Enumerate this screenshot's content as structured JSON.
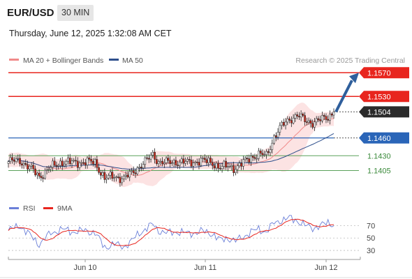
{
  "header": {
    "symbol": "EUR/USD",
    "timeframe": "30 MIN",
    "datetime": "Thursday, June 12, 2025 1:32:08 AM CET"
  },
  "legend": {
    "items": [
      {
        "label": "MA 20 + Bollinger Bands",
        "color": "#f08a8a"
      },
      {
        "label": "MA 50",
        "color": "#2e4f8c"
      }
    ],
    "copyright": "Research © 2025 Trading Central"
  },
  "colors": {
    "resistance": "#e8251e",
    "support_blue": "#2a65b8",
    "support_green": "#5aa15a",
    "price_tag": "#2b2b2b",
    "arrow": "#2f5f9c",
    "bollinger_fill": "#fbd9d9",
    "ma20": "#f08a8a",
    "ma50": "#2e4f8c",
    "rsi": "#6a7fd8",
    "rsi_ma": "#e8251e",
    "candle": "#cc2a1c"
  },
  "chart_data": [
    {
      "type": "candlestick",
      "title": "EUR/USD",
      "timeframe": "30 MIN",
      "x_ticks": [
        "Jun 10",
        "Jun 11",
        "Jun 12"
      ],
      "ylim": [
        1.1375,
        1.1575
      ],
      "levels": [
        {
          "value": 1.157,
          "label": "1.1570",
          "kind": "resistance"
        },
        {
          "value": 1.153,
          "label": "1.1530",
          "kind": "resistance"
        },
        {
          "value": 1.1504,
          "label": "1.1504",
          "kind": "last_price"
        },
        {
          "value": 1.146,
          "label": "1.1460",
          "kind": "support"
        },
        {
          "value": 1.143,
          "label": "1.1430",
          "kind": "support"
        },
        {
          "value": 1.1405,
          "label": "1.1405",
          "kind": "support"
        }
      ],
      "series": [
        {
          "name": "MA 20 + Bollinger Bands"
        },
        {
          "name": "MA 50"
        }
      ],
      "close_keypoints": [
        [
          0,
          1.142
        ],
        [
          6,
          1.1422
        ],
        [
          11,
          1.141
        ],
        [
          16,
          1.1395
        ],
        [
          22,
          1.141
        ],
        [
          28,
          1.142
        ],
        [
          34,
          1.1418
        ],
        [
          40,
          1.142
        ],
        [
          45,
          1.1418
        ],
        [
          50,
          1.1392
        ],
        [
          55,
          1.1395
        ],
        [
          60,
          1.1392
        ],
        [
          64,
          1.14
        ],
        [
          68,
          1.1412
        ],
        [
          72,
          1.1422
        ],
        [
          75,
          1.1432
        ],
        [
          78,
          1.142
        ],
        [
          82,
          1.1418
        ],
        [
          88,
          1.142
        ],
        [
          94,
          1.1418
        ],
        [
          100,
          1.1422
        ],
        [
          106,
          1.1418
        ],
        [
          110,
          1.141
        ],
        [
          114,
          1.1412
        ],
        [
          118,
          1.141
        ],
        [
          122,
          1.1418
        ],
        [
          126,
          1.1428
        ],
        [
          130,
          1.1432
        ],
        [
          134,
          1.143
        ],
        [
          138,
          1.1462
        ],
        [
          142,
          1.148
        ],
        [
          146,
          1.1492
        ],
        [
          150,
          1.1498
        ],
        [
          154,
          1.149
        ],
        [
          158,
          1.1486
        ],
        [
          162,
          1.149
        ],
        [
          166,
          1.1496
        ],
        [
          169,
          1.1504
        ]
      ],
      "forecast_arrow": {
        "from": 1.1504,
        "to": 1.157
      }
    },
    {
      "type": "line",
      "title": "RSI",
      "series": [
        {
          "name": "RSI"
        },
        {
          "name": "9MA"
        }
      ],
      "y_ticks": [
        70,
        50,
        30
      ],
      "ylim": [
        20,
        85
      ],
      "x_ticks": [
        "Jun 10",
        "Jun 11",
        "Jun 12"
      ],
      "rsi_keypoints": [
        [
          0,
          62
        ],
        [
          6,
          70
        ],
        [
          11,
          55
        ],
        [
          16,
          40
        ],
        [
          22,
          58
        ],
        [
          28,
          64
        ],
        [
          34,
          60
        ],
        [
          40,
          62
        ],
        [
          45,
          58
        ],
        [
          50,
          35
        ],
        [
          55,
          40
        ],
        [
          60,
          36
        ],
        [
          64,
          45
        ],
        [
          68,
          58
        ],
        [
          72,
          66
        ],
        [
          75,
          72
        ],
        [
          78,
          62
        ],
        [
          82,
          58
        ],
        [
          88,
          60
        ],
        [
          94,
          57
        ],
        [
          100,
          61
        ],
        [
          106,
          57
        ],
        [
          110,
          46
        ],
        [
          114,
          50
        ],
        [
          118,
          45
        ],
        [
          122,
          52
        ],
        [
          126,
          60
        ],
        [
          130,
          64
        ],
        [
          134,
          60
        ],
        [
          138,
          74
        ],
        [
          142,
          79
        ],
        [
          146,
          82
        ],
        [
          150,
          78
        ],
        [
          154,
          70
        ],
        [
          158,
          66
        ],
        [
          162,
          70
        ],
        [
          166,
          74
        ],
        [
          169,
          72
        ]
      ]
    }
  ]
}
